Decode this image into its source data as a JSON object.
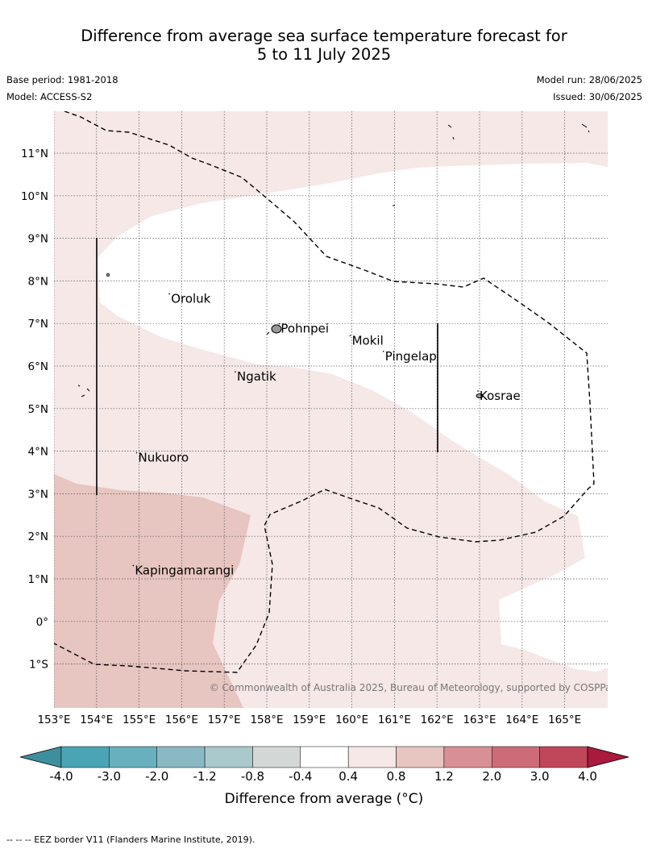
{
  "title": {
    "line1": "Difference from average sea surface temperature forecast for",
    "line2": "5 to 11 July 2025"
  },
  "meta": {
    "base_period": "Base period: 1981-2018",
    "model": "Model: ACCESS-S2",
    "model_run": "Model run: 28/06/2025",
    "issued": "Issued: 30/06/2025"
  },
  "map": {
    "lon_range": [
      153,
      166
    ],
    "lat_range": [
      -2,
      12
    ],
    "lon_ticks": [
      153,
      154,
      155,
      156,
      157,
      158,
      159,
      160,
      161,
      162,
      163,
      164,
      165
    ],
    "lon_tick_labels": [
      "153°E",
      "154°E",
      "155°E",
      "156°E",
      "157°E",
      "158°E",
      "159°E",
      "160°E",
      "161°E",
      "162°E",
      "163°E",
      "164°E",
      "165°E"
    ],
    "lat_ticks": [
      11,
      10,
      9,
      8,
      7,
      6,
      5,
      4,
      3,
      2,
      1,
      0,
      -1
    ],
    "lat_tick_labels": [
      "11°N",
      "10°N",
      "9°N",
      "8°N",
      "7°N",
      "6°N",
      "5°N",
      "4°N",
      "3°N",
      "2°N",
      "1°N",
      "0°",
      "1°S"
    ],
    "places": [
      {
        "name": "Oroluk",
        "lon": 155.75,
        "lat": 7.58
      },
      {
        "name": "Pohnpei",
        "lon": 158.33,
        "lat": 6.88
      },
      {
        "name": "Mokil",
        "lon": 160.0,
        "lat": 6.6
      },
      {
        "name": "Pingelap",
        "lon": 160.78,
        "lat": 6.23
      },
      {
        "name": "Ngatik",
        "lon": 157.3,
        "lat": 5.75
      },
      {
        "name": "Kosrae",
        "lon": 163.0,
        "lat": 5.3
      },
      {
        "name": "Nukuoro",
        "lon": 154.98,
        "lat": 3.85
      },
      {
        "name": "Kapingamarangi",
        "lon": 154.9,
        "lat": 1.2
      }
    ],
    "copyright": "© Commonwealth of Australia 2025, Bureau of Meteorology, supported by COSPPac",
    "anomaly_colors": {
      "0.4_to_0.8": "#f5e8e7",
      "0.8_to_1.2": "#e7c5c0"
    }
  },
  "colorbar": {
    "labels": [
      "-4.0",
      "-3.0",
      "-2.0",
      "-1.2",
      "-0.8",
      "-0.4",
      "0.4",
      "0.8",
      "1.2",
      "2.0",
      "3.0",
      "4.0"
    ],
    "colors": [
      "#3e8f9d",
      "#4aa4b3",
      "#69b0be",
      "#8ab9c4",
      "#a9c9cd",
      "#d3d7d6",
      "#ffffff",
      "#f5e8e7",
      "#e7c5c0",
      "#d88f95",
      "#cd6c78",
      "#c0475a",
      "#a91a3c"
    ],
    "title": "Difference from average (°C)"
  },
  "footnote": "--  --  -- EEZ border V11 (Flanders Marine Institute, 2019)."
}
